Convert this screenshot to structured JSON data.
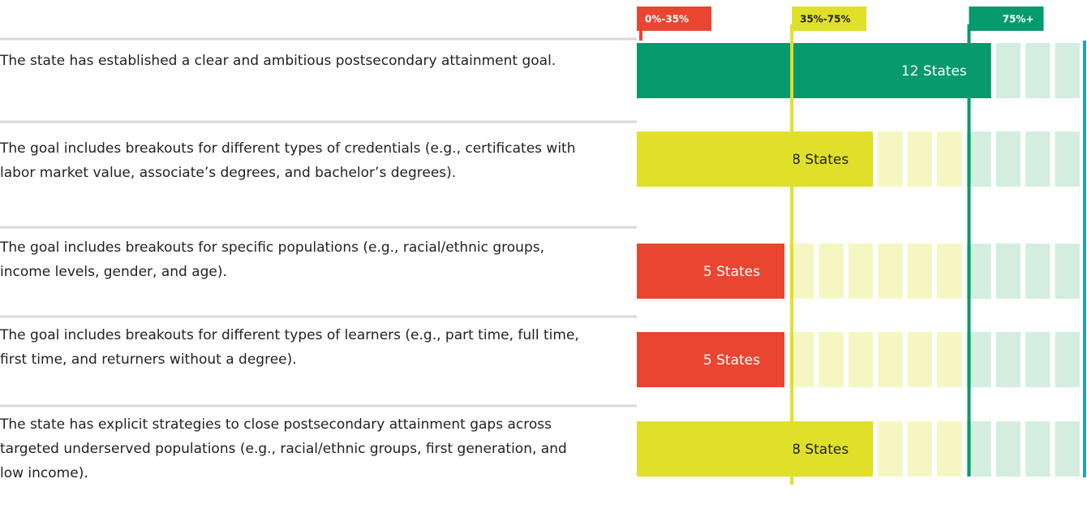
{
  "chart_data": {
    "type": "bar",
    "orientation": "horizontal",
    "categories": [
      "The state has established a clear and ambitious postsecondary attainment goal.",
      "The goal includes breakouts for different types of credentials (e.g., certificates with labor market value, associate’s degrees, and bachelor’s degrees).",
      "The goal includes breakouts for specific populations (e.g., racial/ethnic groups, income levels, gender, and age).",
      "The goal includes breakouts for different types of learners (e.g., part time, full time, first time, and returners without a degree).",
      "The state has explicit strategies to close postsecondary attainment gaps across targeted underserved populations (e.g., racial/ethnic groups, first generation, and low income)."
    ],
    "values": [
      12,
      8,
      5,
      5,
      8
    ],
    "value_labels": [
      "12 States",
      "8 States",
      "5 States",
      "5 States",
      "8 States"
    ],
    "xlim": [
      0,
      15
    ],
    "thresholds": [
      {
        "label": "0%-35%",
        "value": 0,
        "color": "#ea4530",
        "tint": "#fbd9d3",
        "text_color": "#ffffff"
      },
      {
        "label": "35%-75%",
        "value": 35,
        "color": "#e0e02a",
        "tint": "#f6f6c3",
        "text_color": "#222222"
      },
      {
        "label": "75%+",
        "value": 75,
        "color": "#069a6c",
        "tint": "#d3eedf",
        "text_color": "#ffffff"
      }
    ],
    "axis_color": "#1e9ee0"
  }
}
